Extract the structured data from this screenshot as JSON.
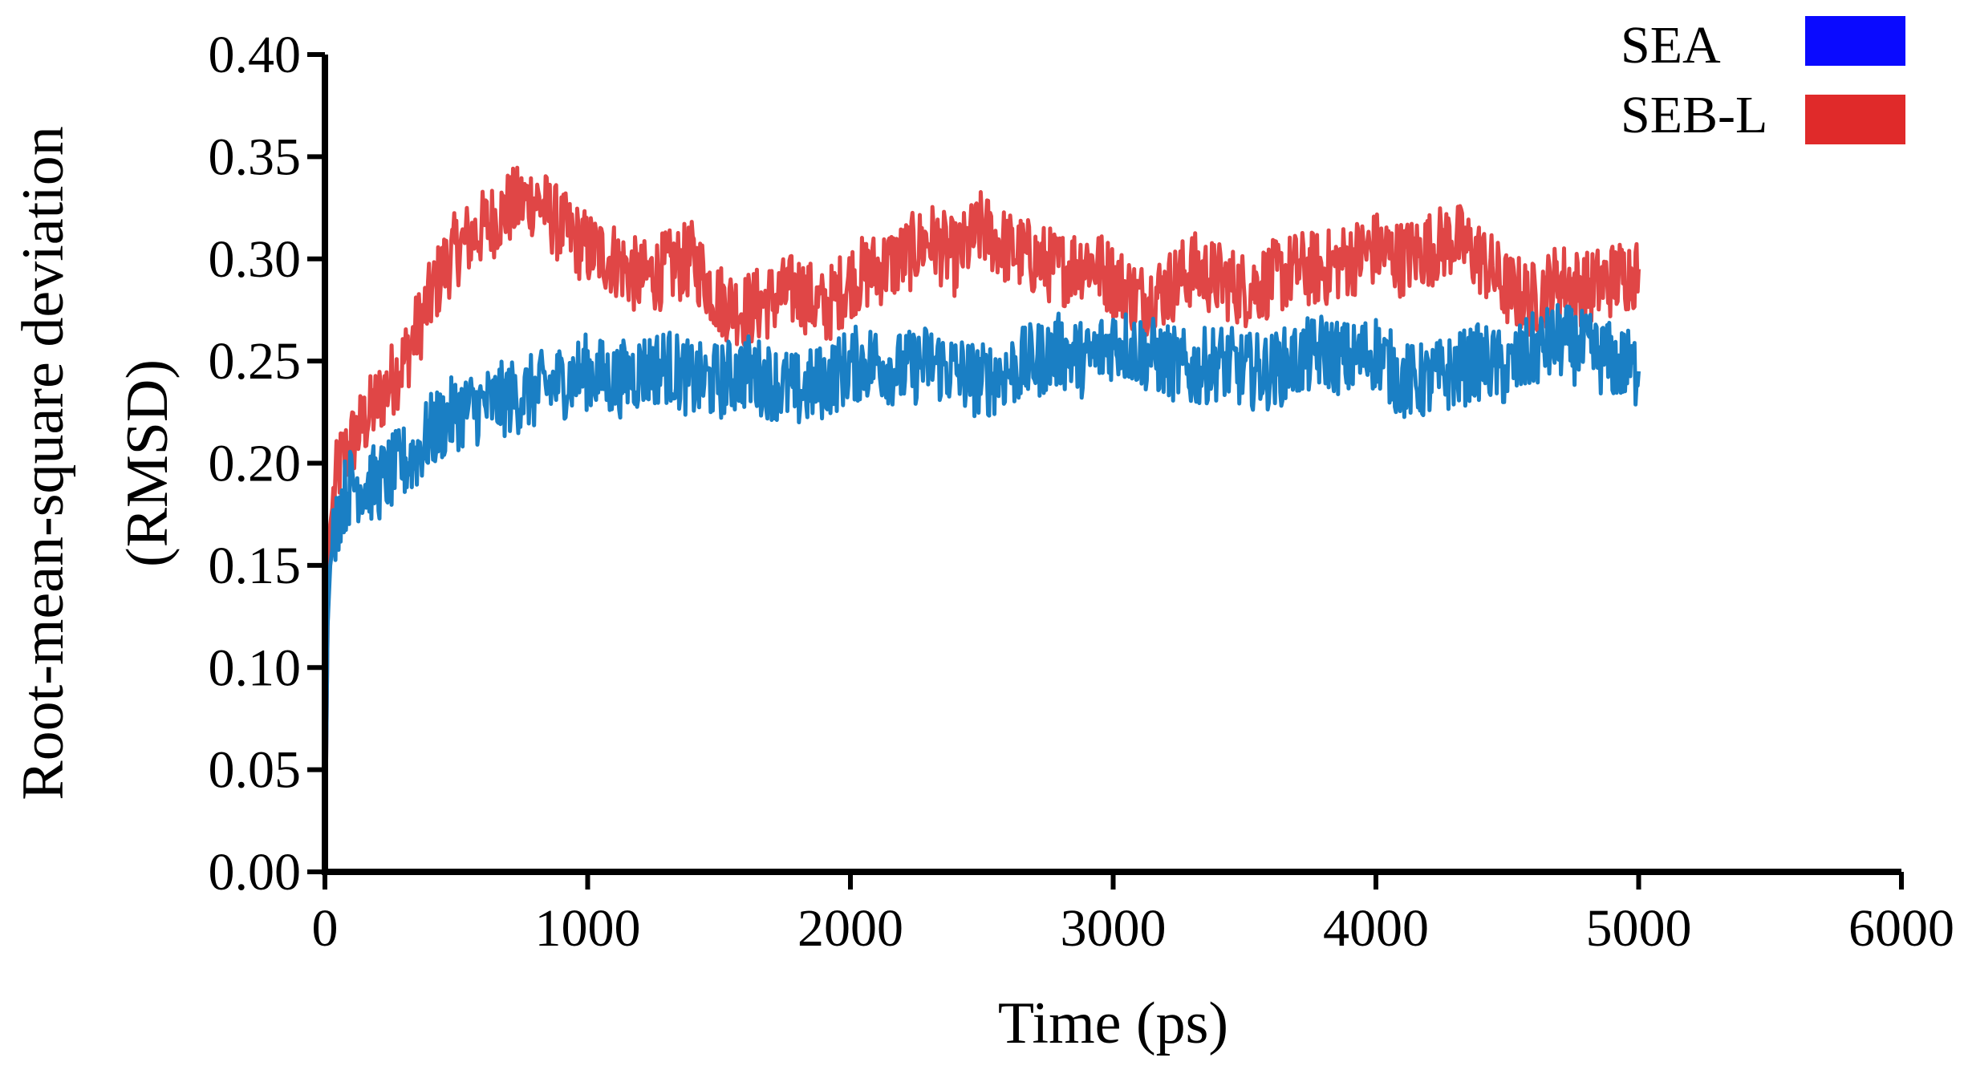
{
  "chart_data": {
    "type": "line",
    "title": "",
    "xlabel": "Time (ps)",
    "ylabel_line1": "Root-mean-square deviation",
    "ylabel_line2": "(RMSD)",
    "xlim": [
      0,
      6000
    ],
    "ylim": [
      0,
      0.4
    ],
    "x_ticks": [
      0,
      1000,
      2000,
      3000,
      4000,
      5000,
      6000
    ],
    "x_tick_labels": [
      "0",
      "1000",
      "2000",
      "3000",
      "4000",
      "5000",
      "6000"
    ],
    "y_ticks": [
      0,
      0.05,
      0.1,
      0.15,
      0.2,
      0.25,
      0.3,
      0.35,
      0.4
    ],
    "y_tick_labels": [
      "0.00",
      "0.05",
      "0.10",
      "0.15",
      "0.20",
      "0.25",
      "0.30",
      "0.35",
      "0.40"
    ],
    "grid": false,
    "legend_position": "top-right",
    "legend": [
      {
        "label": "SEA",
        "swatch_color": "#0a0aff"
      },
      {
        "label": "SEB-L",
        "swatch_color": "#e02a2a"
      }
    ],
    "series": [
      {
        "name": "SEA",
        "color": "#1a7fc4",
        "x": [
          0,
          10,
          20,
          40,
          60,
          80,
          100,
          150,
          200,
          250,
          300,
          350,
          400,
          450,
          500,
          600,
          700,
          800,
          900,
          1000,
          1100,
          1200,
          1300,
          1400,
          1500,
          1600,
          1700,
          1800,
          1900,
          2000,
          2100,
          2200,
          2300,
          2400,
          2500,
          2600,
          2700,
          2800,
          2900,
          3000,
          3100,
          3200,
          3300,
          3400,
          3500,
          3600,
          3700,
          3800,
          3900,
          4000,
          4100,
          4200,
          4300,
          4400,
          4500,
          4600,
          4700,
          4800,
          4900,
          5000
        ],
        "y": [
          0.0,
          0.12,
          0.15,
          0.17,
          0.18,
          0.185,
          0.19,
          0.19,
          0.19,
          0.195,
          0.2,
          0.205,
          0.215,
          0.22,
          0.225,
          0.228,
          0.232,
          0.235,
          0.24,
          0.245,
          0.24,
          0.245,
          0.248,
          0.24,
          0.24,
          0.245,
          0.24,
          0.235,
          0.24,
          0.248,
          0.25,
          0.245,
          0.25,
          0.245,
          0.24,
          0.245,
          0.25,
          0.255,
          0.25,
          0.26,
          0.255,
          0.25,
          0.245,
          0.25,
          0.245,
          0.245,
          0.25,
          0.255,
          0.25,
          0.255,
          0.24,
          0.24,
          0.245,
          0.25,
          0.245,
          0.255,
          0.26,
          0.255,
          0.25,
          0.245
        ]
      },
      {
        "name": "SEB-L",
        "color": "#e04646",
        "x": [
          0,
          10,
          20,
          40,
          60,
          80,
          100,
          150,
          200,
          250,
          300,
          350,
          400,
          450,
          500,
          600,
          700,
          800,
          900,
          1000,
          1100,
          1200,
          1300,
          1400,
          1500,
          1600,
          1700,
          1800,
          1900,
          2000,
          2100,
          2200,
          2300,
          2400,
          2500,
          2600,
          2700,
          2800,
          2900,
          3000,
          3100,
          3200,
          3300,
          3400,
          3500,
          3600,
          3700,
          3800,
          3900,
          4000,
          4100,
          4200,
          4300,
          4400,
          4500,
          4600,
          4700,
          4800,
          4900,
          5000
        ],
        "y": [
          0.0,
          0.12,
          0.17,
          0.19,
          0.2,
          0.205,
          0.21,
          0.22,
          0.23,
          0.24,
          0.25,
          0.265,
          0.28,
          0.295,
          0.305,
          0.315,
          0.325,
          0.33,
          0.315,
          0.305,
          0.3,
          0.29,
          0.295,
          0.3,
          0.28,
          0.275,
          0.28,
          0.285,
          0.275,
          0.29,
          0.295,
          0.3,
          0.31,
          0.3,
          0.315,
          0.305,
          0.3,
          0.295,
          0.3,
          0.29,
          0.28,
          0.285,
          0.295,
          0.29,
          0.285,
          0.29,
          0.295,
          0.295,
          0.3,
          0.305,
          0.3,
          0.305,
          0.31,
          0.3,
          0.285,
          0.28,
          0.29,
          0.285,
          0.29,
          0.295
        ]
      }
    ]
  }
}
